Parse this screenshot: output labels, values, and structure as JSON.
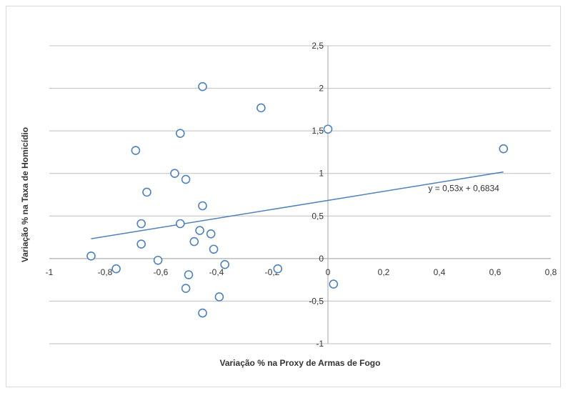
{
  "chart_data": {
    "type": "scatter",
    "xlabel": "Variação % na Proxy de Armas de Fogo",
    "ylabel": "Variação % na Taxa de Homicídio",
    "xlim": [
      -1,
      0.8
    ],
    "ylim": [
      -1,
      2.5
    ],
    "x_ticks": [
      -1,
      -0.8,
      -0.6,
      -0.4,
      -0.2,
      0,
      0.2,
      0.4,
      0.6,
      0.8
    ],
    "x_tick_labels": [
      "-1",
      "-0,8",
      "-0,6",
      "-0,4",
      "-0,2",
      "0",
      "0,2",
      "0,4",
      "0,6",
      "0,8"
    ],
    "y_ticks": [
      -1,
      -0.5,
      0,
      0.5,
      1,
      1.5,
      2,
      2.5
    ],
    "y_tick_labels": [
      "-1",
      "-0,5",
      "0",
      "0,5",
      "1",
      "1,5",
      "2",
      "2,5"
    ],
    "grid": "horizontal",
    "marker_color": "#4f81bd",
    "points": [
      {
        "x": -0.45,
        "y": 2.02
      },
      {
        "x": -0.24,
        "y": 1.77
      },
      {
        "x": 0.0,
        "y": 1.52
      },
      {
        "x": -0.53,
        "y": 1.47
      },
      {
        "x": 0.63,
        "y": 1.29
      },
      {
        "x": -0.69,
        "y": 1.27
      },
      {
        "x": -0.55,
        "y": 1.0
      },
      {
        "x": -0.51,
        "y": 0.93
      },
      {
        "x": -0.65,
        "y": 0.78
      },
      {
        "x": -0.45,
        "y": 0.62
      },
      {
        "x": -0.67,
        "y": 0.41
      },
      {
        "x": -0.53,
        "y": 0.41
      },
      {
        "x": -0.46,
        "y": 0.33
      },
      {
        "x": -0.42,
        "y": 0.29
      },
      {
        "x": -0.48,
        "y": 0.2
      },
      {
        "x": -0.67,
        "y": 0.17
      },
      {
        "x": -0.41,
        "y": 0.11
      },
      {
        "x": -0.85,
        "y": 0.03
      },
      {
        "x": -0.61,
        "y": -0.02
      },
      {
        "x": -0.37,
        "y": -0.07
      },
      {
        "x": -0.76,
        "y": -0.12
      },
      {
        "x": -0.18,
        "y": -0.12
      },
      {
        "x": -0.5,
        "y": -0.19
      },
      {
        "x": 0.02,
        "y": -0.3
      },
      {
        "x": -0.51,
        "y": -0.35
      },
      {
        "x": -0.39,
        "y": -0.45
      },
      {
        "x": -0.45,
        "y": -0.64
      }
    ],
    "trendline": {
      "slope": 0.53,
      "intercept": 0.6834,
      "x_range": [
        -0.85,
        0.63
      ],
      "color": "#4f81bd",
      "equation": "y = 0,53x + 0,6834"
    }
  }
}
